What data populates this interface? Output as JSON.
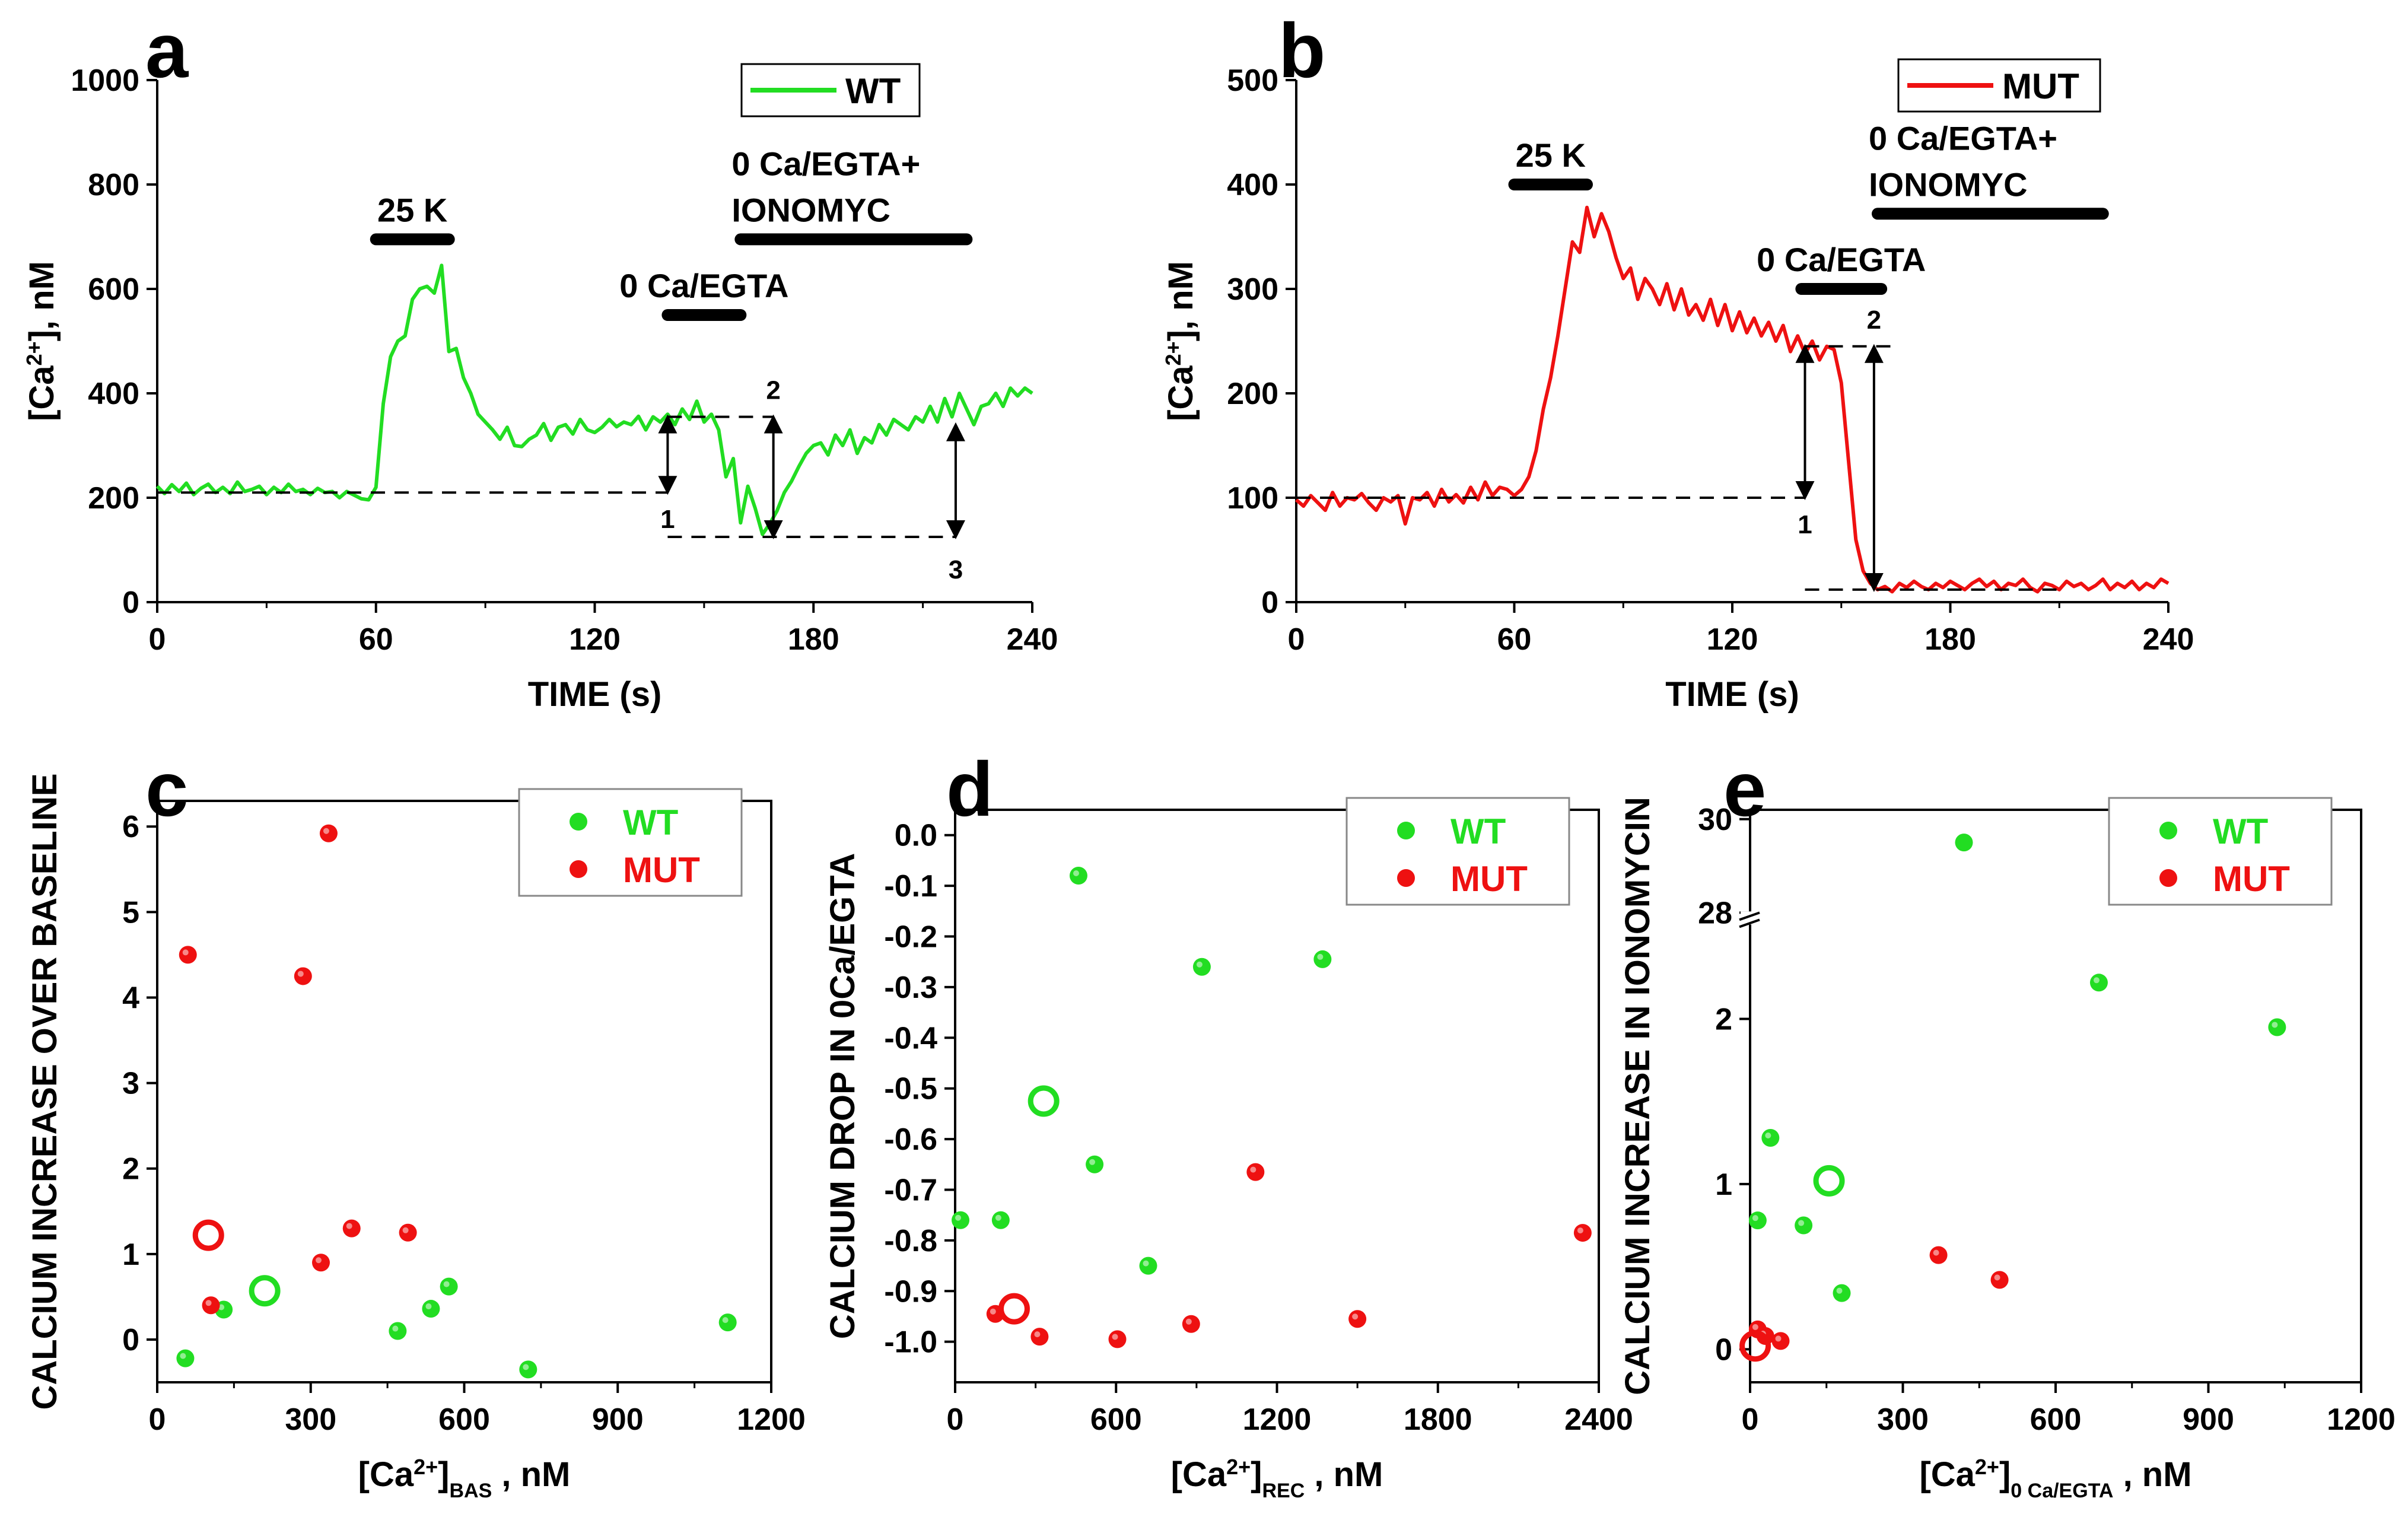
{
  "chart_data": [
    {
      "panel": "a",
      "type": "line",
      "xlabel": "TIME (s)",
      "ylabel": "[Ca2+], nM",
      "xlim": [
        0,
        240
      ],
      "ylim": [
        0,
        1000
      ],
      "xticks": [
        "0",
        "60",
        "120",
        "180",
        "240"
      ],
      "yticks": [
        "0",
        "200",
        "400",
        "600",
        "800",
        "1000"
      ],
      "legend": {
        "label": "WT",
        "position": "top-right"
      },
      "color": "#22dd22",
      "series": [
        {
          "name": "WT",
          "x": [
            0,
            2,
            4,
            6,
            8,
            10,
            12,
            14,
            16,
            18,
            20,
            22,
            24,
            26,
            28,
            30,
            32,
            34,
            36,
            38,
            40,
            42,
            44,
            46,
            48,
            50,
            52,
            54,
            56,
            58,
            60,
            62,
            64,
            66,
            68,
            70,
            72,
            74,
            76,
            78,
            80,
            82,
            84,
            86,
            88,
            90,
            92,
            94,
            96,
            98,
            100,
            102,
            104,
            106,
            108,
            110,
            112,
            114,
            116,
            118,
            120,
            122,
            124,
            126,
            128,
            130,
            132,
            134,
            136,
            138,
            140,
            142,
            144,
            146,
            148,
            150,
            152,
            154,
            156,
            158,
            160,
            162,
            164,
            166,
            168,
            170,
            172,
            174,
            176,
            178,
            180,
            182,
            184,
            186,
            188,
            190,
            192,
            194,
            196,
            198,
            200,
            202,
            204,
            206,
            208,
            210,
            212,
            214,
            216,
            218,
            220,
            222,
            224,
            226,
            228,
            230,
            232,
            234,
            236,
            238,
            240
          ],
          "values": [
            222,
            208,
            225,
            212,
            228,
            206,
            218,
            226,
            210,
            220,
            208,
            230,
            212,
            216,
            222,
            206,
            220,
            210,
            226,
            212,
            216,
            206,
            218,
            210,
            212,
            200,
            212,
            205,
            198,
            196,
            220,
            380,
            470,
            500,
            510,
            580,
            600,
            605,
            592,
            645,
            480,
            486,
            430,
            400,
            360,
            345,
            330,
            312,
            335,
            300,
            298,
            312,
            320,
            342,
            310,
            335,
            340,
            322,
            350,
            330,
            325,
            335,
            350,
            336,
            345,
            340,
            356,
            330,
            355,
            345,
            360,
            340,
            370,
            350,
            385,
            345,
            360,
            330,
            240,
            275,
            152,
            222,
            180,
            130,
            150,
            175,
            210,
            232,
            260,
            285,
            300,
            305,
            282,
            320,
            300,
            330,
            285,
            315,
            305,
            340,
            320,
            350,
            340,
            330,
            355,
            345,
            375,
            345,
            390,
            355,
            400,
            370,
            340,
            375,
            380,
            400,
            375,
            410,
            395,
            410,
            400
          ],
          "annotations_y": [
            210,
            355,
            125
          ]
        }
      ],
      "bars": [
        {
          "label": "25 K",
          "x0": 60,
          "x1": 80,
          "y": 695
        },
        {
          "label": "0 Ca/EGTA",
          "x0": 140,
          "x1": 160,
          "y": 550
        },
        {
          "label": "0 Ca/EGTA+\nIONOMYC",
          "x0": 160,
          "x1": 222,
          "y": 695
        }
      ],
      "markers": [
        {
          "label": "1",
          "x": 140,
          "from": 210,
          "to": 355
        },
        {
          "label": "2",
          "x": 169,
          "from": 125,
          "to": 355
        },
        {
          "label": "3",
          "x": 219,
          "from": 125,
          "to": 340
        }
      ]
    },
    {
      "panel": "b",
      "type": "line",
      "xlabel": "TIME (s)",
      "ylabel": "[Ca2+], nM",
      "xlim": [
        0,
        240
      ],
      "ylim": [
        0,
        500
      ],
      "xticks": [
        "0",
        "60",
        "120",
        "180",
        "240"
      ],
      "yticks": [
        "0",
        "100",
        "200",
        "300",
        "400",
        "500"
      ],
      "legend": {
        "label": "MUT",
        "position": "top-right"
      },
      "color": "#ee1111",
      "series": [
        {
          "name": "MUT",
          "x": [
            0,
            2,
            4,
            6,
            8,
            10,
            12,
            14,
            16,
            18,
            20,
            22,
            24,
            26,
            28,
            30,
            32,
            34,
            36,
            38,
            40,
            42,
            44,
            46,
            48,
            50,
            52,
            54,
            56,
            58,
            60,
            62,
            64,
            66,
            68,
            70,
            72,
            74,
            76,
            78,
            80,
            82,
            84,
            86,
            88,
            90,
            92,
            94,
            96,
            98,
            100,
            102,
            104,
            106,
            108,
            110,
            112,
            114,
            116,
            118,
            120,
            122,
            124,
            126,
            128,
            130,
            132,
            134,
            136,
            138,
            140,
            142,
            144,
            146,
            148,
            150,
            152,
            154,
            156,
            158,
            160,
            162,
            164,
            166,
            168,
            170,
            172,
            174,
            176,
            178,
            180,
            182,
            184,
            186,
            188,
            190,
            192,
            194,
            196,
            198,
            200,
            202,
            204,
            206,
            208,
            210,
            212,
            214,
            216,
            218,
            220,
            222,
            224,
            226,
            228,
            230,
            232,
            234,
            236,
            238,
            240
          ],
          "values": [
            98,
            92,
            102,
            95,
            88,
            105,
            92,
            100,
            98,
            104,
            95,
            88,
            100,
            96,
            102,
            75,
            100,
            98,
            105,
            92,
            108,
            96,
            103,
            95,
            110,
            98,
            115,
            102,
            110,
            108,
            102,
            108,
            120,
            145,
            185,
            215,
            255,
            300,
            345,
            335,
            378,
            350,
            372,
            355,
            330,
            310,
            320,
            290,
            310,
            300,
            285,
            305,
            280,
            300,
            275,
            285,
            270,
            290,
            265,
            285,
            260,
            278,
            258,
            272,
            255,
            268,
            250,
            265,
            240,
            255,
            238,
            250,
            232,
            245,
            242,
            210,
            135,
            60,
            30,
            18,
            12,
            15,
            10,
            18,
            14,
            20,
            15,
            12,
            18,
            14,
            20,
            16,
            12,
            18,
            22,
            15,
            20,
            12,
            18,
            16,
            22,
            14,
            10,
            18,
            16,
            12,
            20,
            15,
            18,
            12,
            16,
            22,
            12,
            18,
            14,
            20,
            12,
            18,
            14,
            22,
            18
          ],
          "annotations_y": [
            100,
            245,
            12
          ]
        }
      ],
      "bars": [
        {
          "label": "25 K",
          "x0": 60,
          "x1": 80,
          "y": 400
        },
        {
          "label": "0 Ca/EGTA",
          "x0": 139,
          "x1": 161,
          "y": 300
        },
        {
          "label": "0 Ca/EGTA+\nIONOMYC",
          "x0": 160,
          "x1": 222,
          "y": 372
        }
      ],
      "markers": [
        {
          "label": "1",
          "x": 140,
          "from": 100,
          "to": 245
        },
        {
          "label": "2",
          "x": 159,
          "from": 12,
          "to": 245
        }
      ]
    },
    {
      "panel": "c",
      "type": "scatter",
      "xlabel": "[Ca2+]BAS , nM",
      "ylabel": "CALCIUM INCREASE OVER BASELINE",
      "xlim": [
        0,
        1200
      ],
      "ylim": [
        -0.5,
        6.3
      ],
      "xticks": [
        "0",
        "300",
        "600",
        "900",
        "1200"
      ],
      "yticks": [
        "0",
        "1",
        "2",
        "3",
        "4",
        "5",
        "6"
      ],
      "legend": {
        "entries": [
          "WT",
          "MUT"
        ],
        "position": "top-right"
      },
      "series": [
        {
          "name": "WT",
          "color": "#22dd22",
          "points": [
            [
              55,
              -0.22
            ],
            [
              130,
              0.35
            ],
            [
              470,
              0.1
            ],
            [
              535,
              0.36
            ],
            [
              570,
              0.62
            ],
            [
              725,
              -0.35
            ],
            [
              1115,
              0.2
            ]
          ],
          "mean": [
            210,
            0.57
          ]
        },
        {
          "name": "MUT",
          "color": "#ee1111",
          "points": [
            [
              60,
              4.5
            ],
            [
              105,
              0.4
            ],
            [
              285,
              4.25
            ],
            [
              320,
              0.9
            ],
            [
              335,
              5.92
            ],
            [
              380,
              1.3
            ],
            [
              490,
              1.25
            ]
          ],
          "mean": [
            100,
            1.22
          ]
        }
      ]
    },
    {
      "panel": "d",
      "type": "scatter",
      "xlabel": "[Ca2+]REC , nM",
      "ylabel": "CALCIUM DROP IN 0Ca/EGTA",
      "xlim": [
        0,
        2400
      ],
      "ylim": [
        -1.08,
        0.05
      ],
      "xticks": [
        "0",
        "600",
        "1200",
        "1800",
        "2400"
      ],
      "yticks": [
        "0.0",
        "-0.1",
        "-0.2",
        "-0.3",
        "-0.4",
        "-0.5",
        "-0.6",
        "-0.7",
        "-0.8",
        "-0.9",
        "-1.0"
      ],
      "legend": {
        "entries": [
          "WT",
          "MUT"
        ],
        "position": "top-right"
      },
      "series": [
        {
          "name": "WT",
          "color": "#22dd22",
          "points": [
            [
              20,
              -0.76
            ],
            [
              170,
              -0.76
            ],
            [
              460,
              -0.08
            ],
            [
              520,
              -0.65
            ],
            [
              720,
              -0.85
            ],
            [
              920,
              -0.26
            ],
            [
              1370,
              -0.245
            ]
          ],
          "mean": [
            330,
            -0.525
          ]
        },
        {
          "name": "MUT",
          "color": "#ee1111",
          "points": [
            [
              150,
              -0.945
            ],
            [
              315,
              -0.99
            ],
            [
              605,
              -0.995
            ],
            [
              880,
              -0.965
            ],
            [
              1120,
              -0.665
            ],
            [
              1500,
              -0.955
            ],
            [
              2340,
              -0.785
            ]
          ],
          "mean": [
            220,
            -0.935
          ]
        }
      ]
    },
    {
      "panel": "e",
      "type": "scatter",
      "xlabel": "[Ca2+]0 Ca/EGTA , nM",
      "ylabel": "CALCIUM INCREASE IN IONOMYCIN",
      "xlim": [
        0,
        1200
      ],
      "ylim": [
        -0.2,
        2.5
      ],
      "upper_ylim": [
        28,
        30.2
      ],
      "axis_break": true,
      "xticks": [
        "0",
        "300",
        "600",
        "900",
        "1200"
      ],
      "yticks": [
        "0",
        "1",
        "2",
        "28",
        "30"
      ],
      "legend": {
        "entries": [
          "WT",
          "MUT"
        ],
        "position": "top-right"
      },
      "series": [
        {
          "name": "WT",
          "color": "#22dd22",
          "points": [
            [
              15,
              0.78
            ],
            [
              40,
              1.28
            ],
            [
              105,
              0.75
            ],
            [
              180,
              0.34
            ],
            [
              685,
              2.22
            ],
            [
              1035,
              1.95
            ]
          ],
          "upper_points": [
            [
              420,
              29.5
            ]
          ],
          "mean": [
            155,
            1.02
          ]
        },
        {
          "name": "MUT",
          "color": "#ee1111",
          "points": [
            [
              15,
              0.12
            ],
            [
              30,
              0.08
            ],
            [
              60,
              0.05
            ],
            [
              370,
              0.57
            ],
            [
              490,
              0.42
            ]
          ],
          "mean": [
            10,
            0.02
          ]
        }
      ]
    }
  ]
}
